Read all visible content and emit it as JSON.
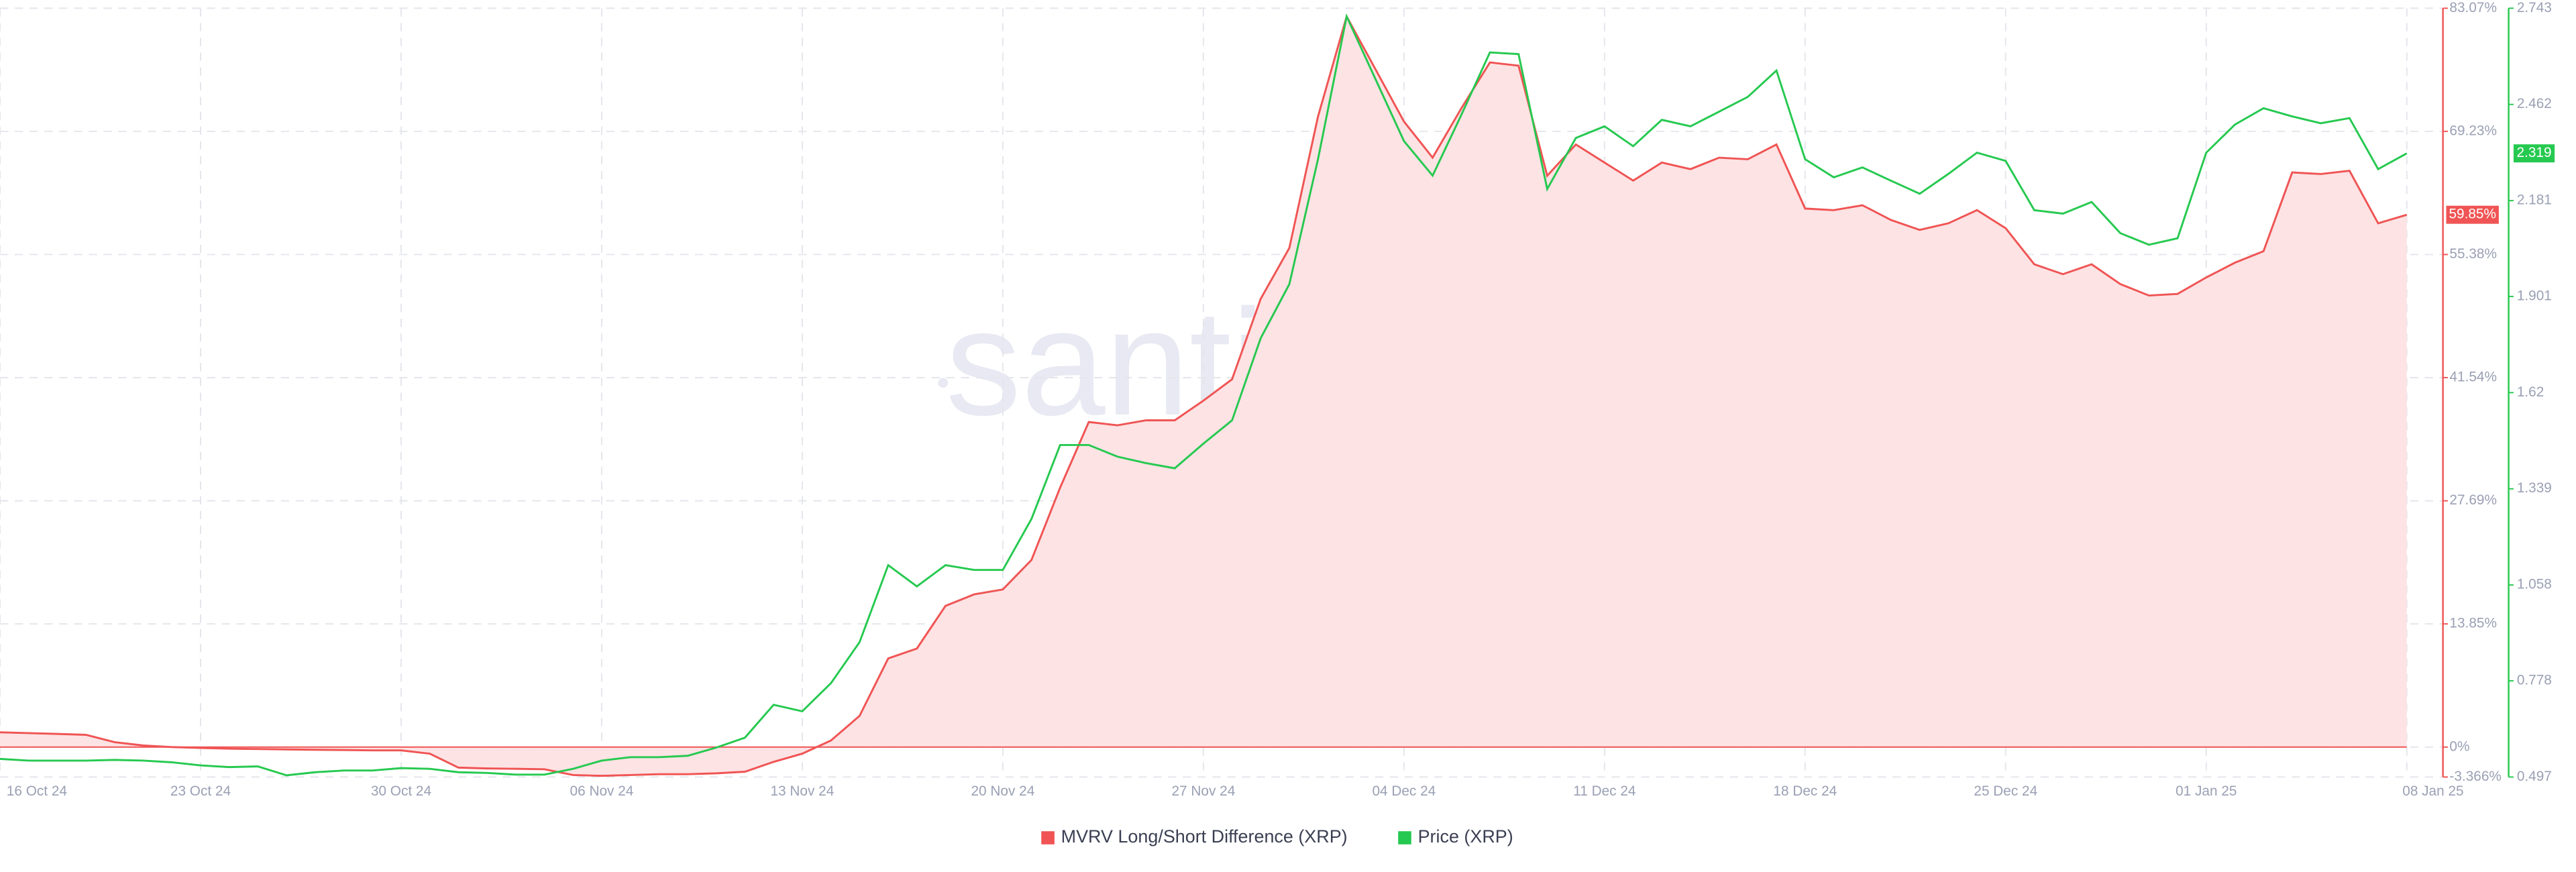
{
  "chart_data": {
    "type": "line",
    "watermark": "santiment",
    "categories": [
      "16 Oct 24",
      null,
      null,
      null,
      null,
      null,
      null,
      "23 Oct 24",
      null,
      null,
      null,
      null,
      null,
      null,
      "30 Oct 24",
      null,
      null,
      null,
      null,
      null,
      null,
      "06 Nov 24",
      null,
      null,
      null,
      null,
      null,
      null,
      "13 Nov 24",
      null,
      null,
      null,
      null,
      null,
      null,
      "20 Nov 24",
      null,
      null,
      null,
      null,
      null,
      null,
      "27 Nov 24",
      null,
      null,
      null,
      null,
      null,
      null,
      "04 Dec 24",
      null,
      null,
      null,
      null,
      null,
      null,
      "11 Dec 24",
      null,
      null,
      null,
      null,
      null,
      null,
      "18 Dec 24",
      null,
      null,
      null,
      null,
      null,
      null,
      "25 Dec 24",
      null,
      null,
      null,
      null,
      null,
      null,
      "01 Jan 25",
      null,
      null,
      null,
      null,
      null,
      null,
      "08 Jan 25"
    ],
    "series": [
      {
        "name": "MVRV Long/Short Difference (XRP)",
        "color": "#f05454",
        "area_color": "#fde3e4",
        "axis": "y",
        "last_label": "59.85%",
        "values": [
          1.66,
          1.57,
          1.48,
          1.38,
          0.55,
          0.18,
          0,
          -0.09,
          -0.18,
          -0.22,
          -0.26,
          -0.3,
          -0.33,
          -0.37,
          -0.37,
          -0.74,
          -2.31,
          -2.4,
          -2.44,
          -2.49,
          -3.14,
          -3.23,
          -3.14,
          -3.05,
          -3.05,
          -2.95,
          -2.77,
          -1.66,
          -0.74,
          0.74,
          3.51,
          9.97,
          11.08,
          15.88,
          17.17,
          17.72,
          21.04,
          29.17,
          36.55,
          36.18,
          36.74,
          36.74,
          38.95,
          41.35,
          50.4,
          56.12,
          70.89,
          82.15,
          76.24,
          70.33,
          66.27,
          71.81,
          76.98,
          76.61,
          64.24,
          67.75,
          65.72,
          63.69,
          65.72,
          64.98,
          66.27,
          66.09,
          67.75,
          60.55,
          60.37,
          60.92,
          59.26,
          58.15,
          58.89,
          60.37,
          58.34,
          54.28,
          53.17,
          54.28,
          52.06,
          50.77,
          50.95,
          52.8,
          54.46,
          55.75,
          64.61,
          64.43,
          64.8,
          58.89,
          59.85
        ]
      },
      {
        "name": "Price (XRP)",
        "color": "#26c950",
        "axis": "y2",
        "values": [
          0.55,
          0.545,
          0.545,
          0.545,
          0.547,
          0.545,
          0.54,
          0.531,
          0.526,
          0.528,
          0.502,
          0.511,
          0.516,
          0.516,
          0.523,
          0.521,
          0.511,
          0.509,
          0.504,
          0.504,
          0.521,
          0.545,
          0.555,
          0.555,
          0.559,
          0.583,
          0.612,
          0.708,
          0.689,
          0.771,
          0.891,
          1.116,
          1.054,
          1.116,
          1.102,
          1.102,
          1.251,
          1.467,
          1.467,
          1.433,
          1.414,
          1.399,
          1.471,
          1.539,
          1.779,
          1.937,
          2.302,
          2.719,
          2.537,
          2.355,
          2.254,
          2.431,
          2.614,
          2.609,
          2.215,
          2.364,
          2.398,
          2.34,
          2.417,
          2.398,
          2.441,
          2.484,
          2.561,
          2.302,
          2.249,
          2.278,
          2.239,
          2.201,
          2.259,
          2.321,
          2.297,
          2.153,
          2.143,
          2.177,
          2.086,
          2.052,
          2.071,
          2.321,
          2.403,
          2.451,
          2.427,
          2.407,
          2.422,
          2.273,
          2.319
        ]
      }
    ],
    "ylim": [
      -3.366,
      83.07
    ],
    "yticks": [
      {
        "value": 83.07,
        "label": "83.07%"
      },
      {
        "value": 69.23,
        "label": "69.23%"
      },
      {
        "value": 55.38,
        "label": "55.38%"
      },
      {
        "value": 41.54,
        "label": "41.54%"
      },
      {
        "value": 27.69,
        "label": "27.69%"
      },
      {
        "value": 13.85,
        "label": "13.85%"
      },
      {
        "value": 0,
        "label": "0%"
      },
      {
        "value": -3.366,
        "label": "-3.366%"
      }
    ],
    "y2lim": [
      0.497,
      2.743
    ],
    "y2ticks": [
      2.743,
      2.462,
      2.181,
      1.901,
      1.62,
      1.339,
      1.058,
      0.778,
      0.497
    ],
    "grid": true,
    "legend": "bottom"
  }
}
